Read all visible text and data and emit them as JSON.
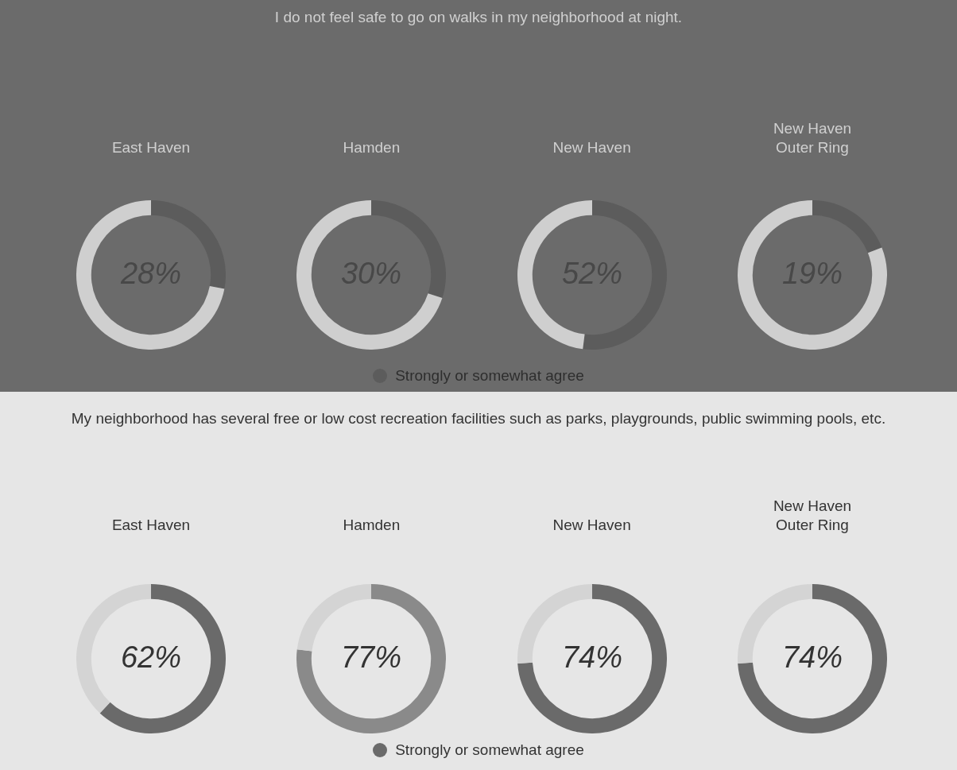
{
  "chart_data": [
    {
      "type": "other",
      "title": "I do not feel safe to go on walks in my neighborhood at night."
    },
    {
      "type": "donut",
      "title": "East Haven",
      "categories": [
        "Strongly or somewhat agree",
        null
      ],
      "values": [
        28,
        72
      ],
      "colors": [
        "#5c5c5c",
        "#cfcfcf"
      ],
      "value_labels": [
        "28%",
        null
      ],
      "legend": "bottom"
    },
    {
      "type": "donut",
      "title": "Hamden",
      "values": [
        30,
        70
      ],
      "colors": [
        "#5c5c5c",
        "#cfcfcf"
      ],
      "value_labels": [
        "30%",
        null
      ]
    },
    {
      "type": "donut",
      "title": "New Haven",
      "values": [
        52,
        48
      ],
      "colors": [
        "#5c5c5c",
        "#cfcfcf"
      ],
      "value_labels": [
        "52%",
        null
      ]
    },
    {
      "type": "donut",
      "title": "New Haven\nOuter Ring",
      "values": [
        19,
        81
      ],
      "colors": [
        "#5c5c5c",
        "#cfcfcf"
      ],
      "value_labels": [
        "19%",
        null
      ]
    },
    {
      "type": "other",
      "title": "My neighborhood has several free or low cost recreation facilities such as parks, playgrounds, public swimming pools, etc."
    },
    {
      "type": "donut",
      "title": "East Haven",
      "categories": [
        "Strongly or somewhat agree",
        null
      ],
      "values": [
        62,
        38
      ],
      "colors": [
        "#6a6a6a",
        "#d4d4d4"
      ],
      "value_labels": [
        "62%",
        null
      ],
      "legend": "bottom"
    },
    {
      "type": "donut",
      "title": "Hamden",
      "values": [
        77,
        23
      ],
      "colors": [
        "#8a8a8a",
        "#d4d4d4"
      ],
      "value_labels": [
        "77%",
        null
      ]
    },
    {
      "type": "donut",
      "title": "New Haven",
      "values": [
        74,
        26
      ],
      "colors": [
        "#6a6a6a",
        "#d4d4d4"
      ],
      "value_labels": [
        "74%",
        null
      ]
    },
    {
      "type": "donut",
      "title": "New Haven\nOuter Ring",
      "values": [
        74,
        26
      ],
      "colors": [
        "#6a6a6a",
        "#d4d4d4"
      ],
      "value_labels": [
        "74%",
        null
      ]
    }
  ]
}
